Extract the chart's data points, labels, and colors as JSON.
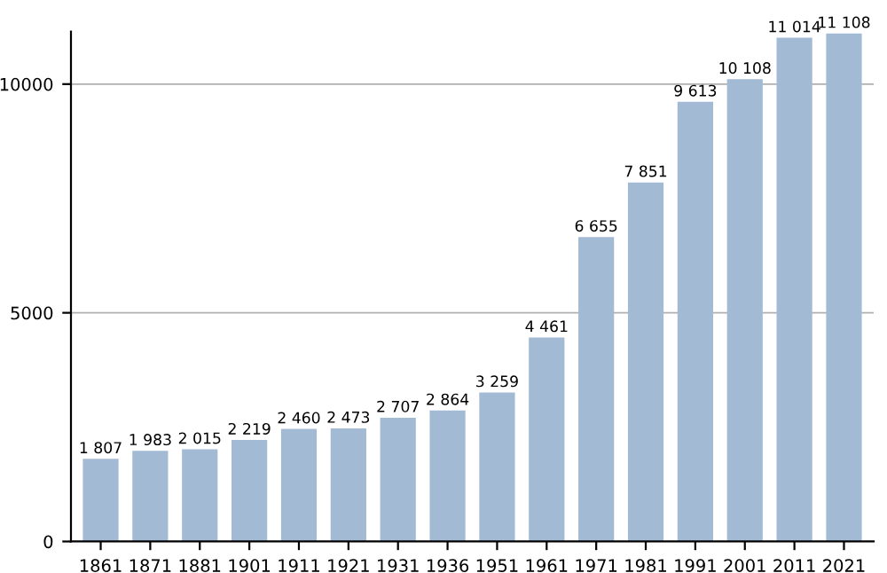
{
  "chart_data": {
    "type": "bar",
    "categories": [
      "1861",
      "1871",
      "1881",
      "1901",
      "1911",
      "1921",
      "1931",
      "1936",
      "1951",
      "1961",
      "1971",
      "1981",
      "1991",
      "2001",
      "2011",
      "2021"
    ],
    "values": [
      1807,
      1983,
      2015,
      2219,
      2460,
      2473,
      2707,
      2864,
      3259,
      4461,
      6655,
      7851,
      9613,
      10108,
      11014,
      11108
    ],
    "value_labels": [
      "1 807",
      "1 983",
      "2 015",
      "2 219",
      "2 460",
      "2 473",
      "2 707",
      "2 864",
      "3 259",
      "4 461",
      "6 655",
      "7 851",
      "9 613",
      "10 108",
      "11 014",
      "11 108"
    ],
    "color": "#a3bad5",
    "ylim": [
      0,
      11150
    ],
    "yticks": [
      0,
      5000,
      10000
    ],
    "grid": "y"
  }
}
